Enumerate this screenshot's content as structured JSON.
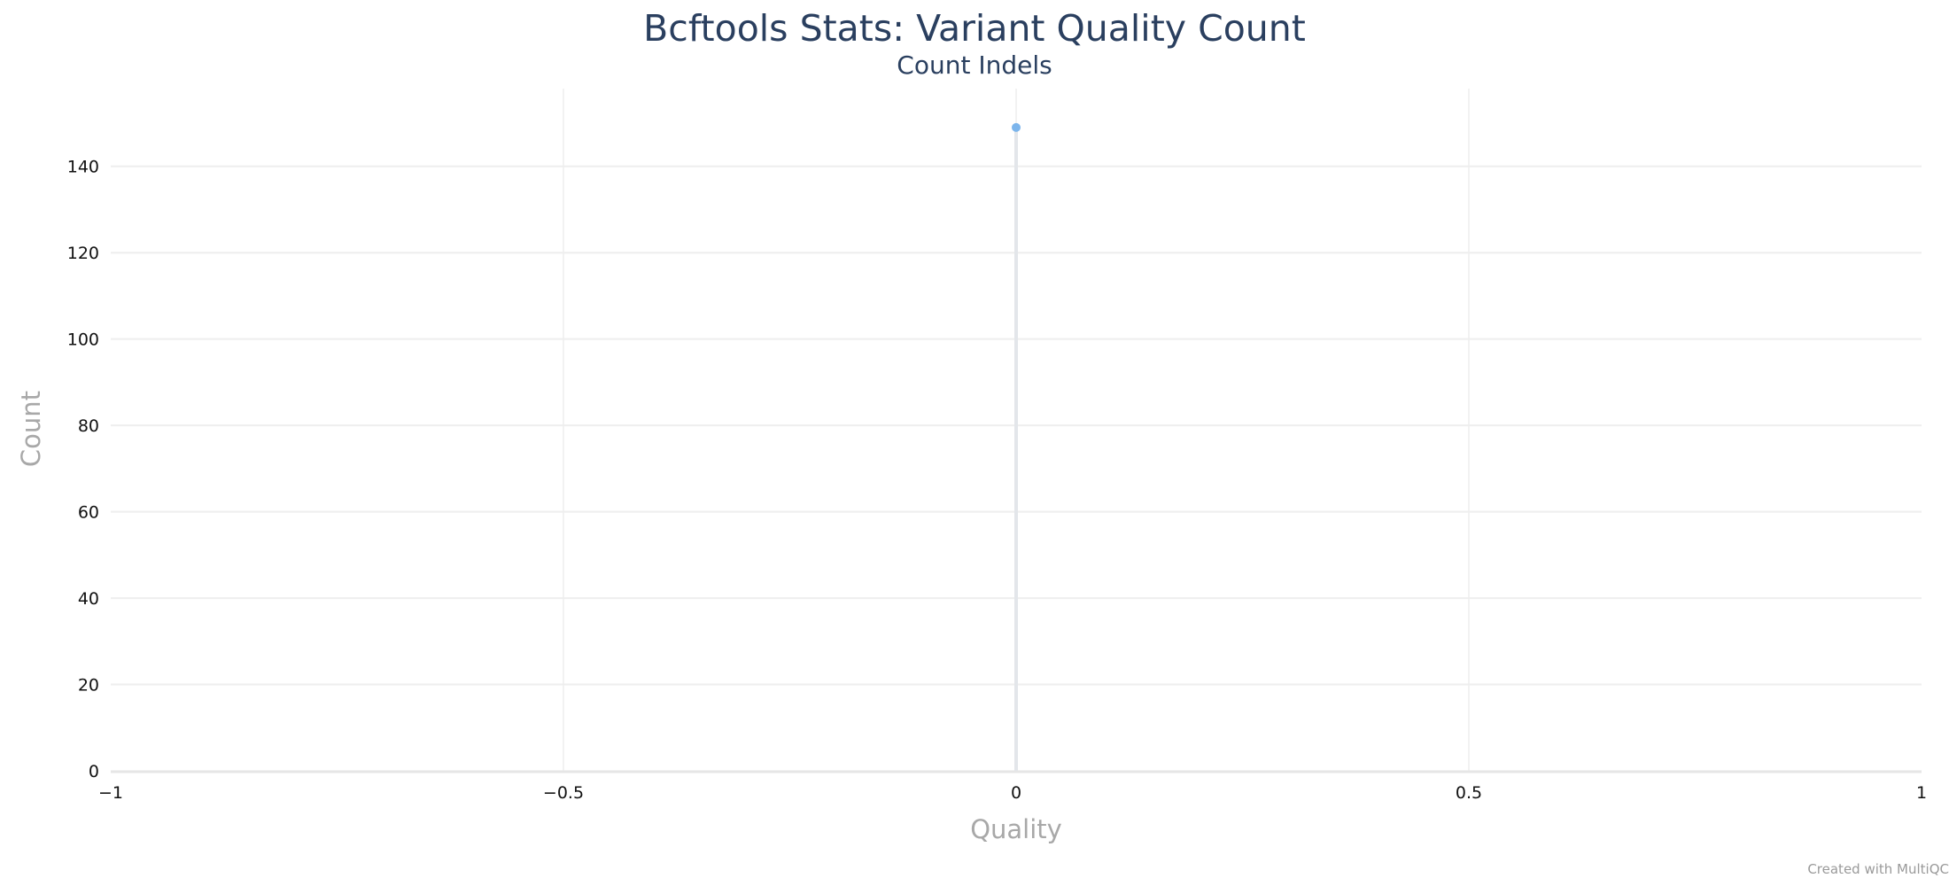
{
  "chart_data": {
    "type": "line",
    "title": "Bcftools Stats: Variant Quality Count",
    "subtitle": "Count Indels",
    "xlabel": "Quality",
    "ylabel": "Count",
    "xlim": [
      -1,
      1
    ],
    "ylim": [
      0,
      158
    ],
    "x_ticks": [
      -1,
      -0.5,
      0,
      0.5,
      1
    ],
    "x_tick_labels": [
      "−1",
      "−0.5",
      "0",
      "0.5",
      "1"
    ],
    "y_ticks": [
      0,
      20,
      40,
      60,
      80,
      100,
      120,
      140
    ],
    "y_tick_labels": [
      "0",
      "20",
      "40",
      "60",
      "80",
      "100",
      "120",
      "140"
    ],
    "grid": true,
    "series": [
      {
        "color": "#7cb5ec",
        "x": [
          0
        ],
        "y": [
          149
        ]
      }
    ]
  },
  "credit": "Created with MultiQC"
}
